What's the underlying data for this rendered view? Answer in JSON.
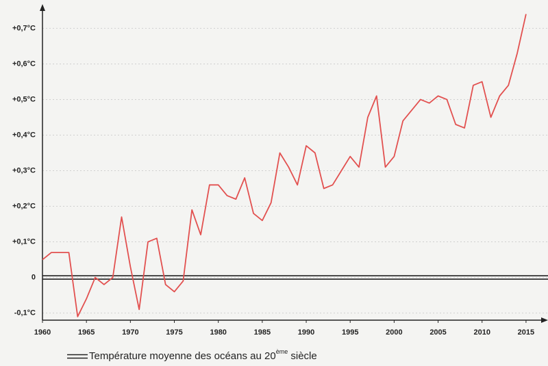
{
  "chart_data": {
    "type": "line",
    "x": [
      1960,
      1961,
      1962,
      1963,
      1964,
      1965,
      1966,
      1967,
      1968,
      1969,
      1970,
      1971,
      1972,
      1973,
      1974,
      1975,
      1976,
      1977,
      1978,
      1979,
      1980,
      1981,
      1982,
      1983,
      1984,
      1985,
      1986,
      1987,
      1988,
      1989,
      1990,
      1991,
      1992,
      1993,
      1994,
      1995,
      1996,
      1997,
      1998,
      1999,
      2000,
      2001,
      2002,
      2003,
      2004,
      2005,
      2006,
      2007,
      2008,
      2009,
      2010,
      2011,
      2012,
      2013,
      2014,
      2015
    ],
    "series": [
      {
        "color": "#e2504f",
        "values": [
          0.05,
          0.07,
          0.07,
          0.07,
          -0.11,
          -0.06,
          0.0,
          -0.02,
          0.0,
          0.17,
          0.03,
          -0.09,
          0.1,
          0.11,
          -0.02,
          -0.04,
          -0.01,
          0.19,
          0.12,
          0.26,
          0.26,
          0.23,
          0.22,
          0.28,
          0.18,
          0.16,
          0.21,
          0.35,
          0.31,
          0.26,
          0.37,
          0.35,
          0.25,
          0.26,
          0.3,
          0.34,
          0.31,
          0.45,
          0.51,
          0.31,
          0.34,
          0.44,
          0.47,
          0.5,
          0.49,
          0.51,
          0.5,
          0.43,
          0.42,
          0.54,
          0.55,
          0.45,
          0.51,
          0.54,
          0.63,
          0.74
        ]
      }
    ],
    "baseline": {
      "value": 0,
      "color": "#222222",
      "name_parts": [
        "Température moyenne des océans au 20",
        "ème",
        " siècle"
      ]
    },
    "xlim": [
      1960,
      2017.5
    ],
    "xticks": [
      1960,
      1965,
      1970,
      1975,
      1980,
      1985,
      1990,
      1995,
      2000,
      2005,
      2010,
      2015
    ],
    "ylim": [
      -0.12,
      0.77
    ],
    "yticks": [
      {
        "value": -0.1,
        "label": "-0,1°C"
      },
      0,
      {
        "value": 0.1,
        "label": "+0,1°C"
      },
      {
        "value": 0.2,
        "label": "+0,2°C"
      },
      {
        "value": 0.3,
        "label": "+0,3°C"
      },
      {
        "value": 0.4,
        "label": "+0,4°C"
      },
      {
        "value": 0.5,
        "label": "+0,5°C"
      },
      {
        "value": 0.6,
        "label": "+0,6°C"
      },
      {
        "value": 0.7,
        "label": "+0,7°C"
      }
    ],
    "grid": true
  }
}
